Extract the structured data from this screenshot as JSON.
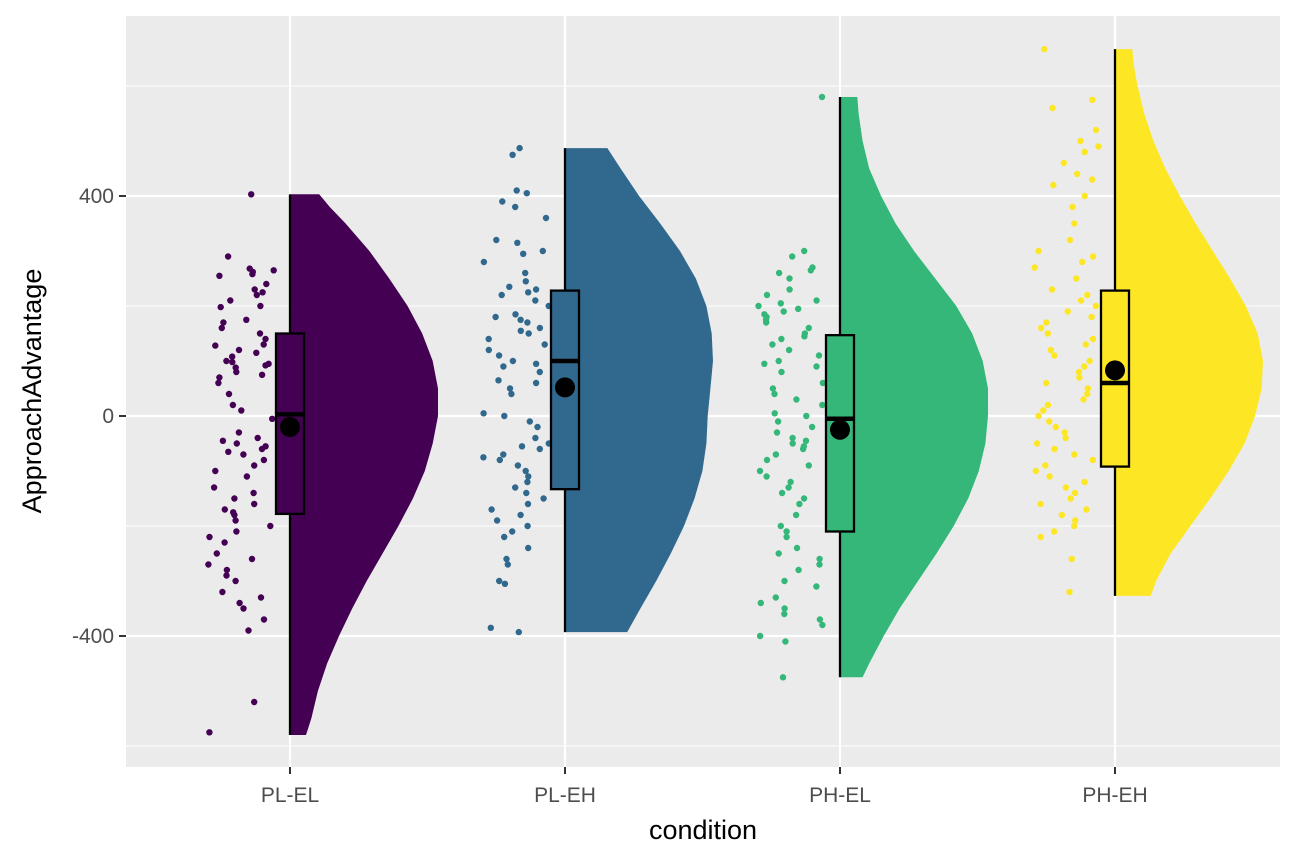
{
  "chart_data": {
    "type": "raincloud",
    "xlabel": "condition",
    "ylabel": "ApproachAdvantage",
    "ylim": [
      -640,
      670
    ],
    "yticks": [
      -400,
      0,
      400
    ],
    "ytick_labels": [
      "-400",
      "0",
      "400"
    ],
    "grid": true,
    "legend": "none",
    "categories": [
      "PL-EL",
      "PL-EH",
      "PH-EL",
      "PH-EH"
    ],
    "series": [
      {
        "name": "PL-EL",
        "color": "#440154",
        "min": -580,
        "q1": -178,
        "median": 3,
        "q3": 150,
        "max": 403,
        "mean": -20,
        "density": [
          [
            -580,
            0.0
          ],
          [
            -550,
            0.04
          ],
          [
            -500,
            0.09
          ],
          [
            -450,
            0.16
          ],
          [
            -400,
            0.25
          ],
          [
            -350,
            0.35
          ],
          [
            -300,
            0.46
          ],
          [
            -250,
            0.58
          ],
          [
            -200,
            0.7
          ],
          [
            -150,
            0.81
          ],
          [
            -100,
            0.9
          ],
          [
            -50,
            0.96
          ],
          [
            0,
            1.0
          ],
          [
            50,
            1.0
          ],
          [
            100,
            0.96
          ],
          [
            150,
            0.88
          ],
          [
            200,
            0.77
          ],
          [
            250,
            0.63
          ],
          [
            300,
            0.48
          ],
          [
            350,
            0.3
          ],
          [
            380,
            0.18
          ],
          [
            403,
            0.1
          ]
        ],
        "points": [
          403,
          290,
          268,
          265,
          262,
          258,
          255,
          240,
          230,
          225,
          220,
          210,
          200,
          198,
          175,
          170,
          160,
          150,
          140,
          130,
          128,
          120,
          115,
          108,
          100,
          98,
          95,
          92,
          88,
          80,
          75,
          70,
          60,
          40,
          20,
          10,
          -5,
          -30,
          -40,
          -45,
          -50,
          -55,
          -60,
          -65,
          -70,
          -80,
          -90,
          -100,
          -110,
          -130,
          -140,
          -150,
          -160,
          -170,
          -175,
          -180,
          -190,
          -200,
          -210,
          -220,
          -230,
          -250,
          -260,
          -270,
          -280,
          -290,
          -300,
          -320,
          -330,
          -340,
          -350,
          -370,
          -390,
          -520,
          -575
        ]
      },
      {
        "name": "PL-EH",
        "color": "#31688e",
        "min": -393,
        "q1": -133,
        "median": 100,
        "q3": 228,
        "max": 487,
        "mean": 52,
        "density": [
          [
            -393,
            0.35
          ],
          [
            -350,
            0.45
          ],
          [
            -300,
            0.57
          ],
          [
            -250,
            0.68
          ],
          [
            -200,
            0.78
          ],
          [
            -150,
            0.86
          ],
          [
            -100,
            0.92
          ],
          [
            -50,
            0.95
          ],
          [
            0,
            0.96
          ],
          [
            50,
            0.98
          ],
          [
            100,
            1.0
          ],
          [
            150,
            0.99
          ],
          [
            200,
            0.95
          ],
          [
            250,
            0.87
          ],
          [
            300,
            0.75
          ],
          [
            350,
            0.6
          ],
          [
            400,
            0.44
          ],
          [
            450,
            0.3
          ],
          [
            487,
            0.2
          ]
        ],
        "points": [
          487,
          475,
          410,
          405,
          390,
          380,
          360,
          320,
          315,
          300,
          295,
          280,
          260,
          245,
          235,
          230,
          225,
          220,
          210,
          200,
          185,
          180,
          175,
          170,
          160,
          155,
          150,
          140,
          130,
          120,
          110,
          100,
          95,
          90,
          80,
          65,
          60,
          50,
          40,
          5,
          0,
          -10,
          -20,
          -40,
          -50,
          -55,
          -60,
          -70,
          -75,
          -80,
          -90,
          -100,
          -110,
          -120,
          -130,
          -140,
          -150,
          -160,
          -170,
          -180,
          -190,
          -200,
          -210,
          -220,
          -240,
          -260,
          -270,
          -300,
          -305,
          -385,
          -393
        ]
      },
      {
        "name": "PH-EL",
        "color": "#35b779",
        "min": -475,
        "q1": -210,
        "median": -5,
        "q3": 147,
        "max": 580,
        "mean": -25,
        "density": [
          [
            -475,
            0.05
          ],
          [
            -450,
            0.1
          ],
          [
            -400,
            0.21
          ],
          [
            -350,
            0.33
          ],
          [
            -300,
            0.47
          ],
          [
            -250,
            0.61
          ],
          [
            -200,
            0.74
          ],
          [
            -150,
            0.85
          ],
          [
            -100,
            0.93
          ],
          [
            -50,
            0.98
          ],
          [
            0,
            1.0
          ],
          [
            50,
            1.0
          ],
          [
            100,
            0.96
          ],
          [
            150,
            0.88
          ],
          [
            200,
            0.76
          ],
          [
            250,
            0.6
          ],
          [
            300,
            0.44
          ],
          [
            350,
            0.3
          ],
          [
            400,
            0.19
          ],
          [
            450,
            0.1
          ],
          [
            500,
            0.05
          ],
          [
            550,
            0.02
          ],
          [
            580,
            0.01
          ]
        ],
        "points": [
          580,
          300,
          290,
          270,
          265,
          260,
          250,
          230,
          220,
          210,
          205,
          200,
          195,
          190,
          185,
          180,
          175,
          170,
          160,
          150,
          145,
          140,
          130,
          120,
          110,
          100,
          95,
          90,
          80,
          60,
          50,
          40,
          30,
          20,
          5,
          0,
          -10,
          -20,
          -30,
          -40,
          -45,
          -50,
          -55,
          -60,
          -70,
          -80,
          -90,
          -100,
          -110,
          -120,
          -130,
          -140,
          -150,
          -160,
          -180,
          -200,
          -210,
          -220,
          -240,
          -250,
          -260,
          -270,
          -280,
          -300,
          -310,
          -330,
          -340,
          -350,
          -360,
          -370,
          -380,
          -400,
          -410,
          -475
        ]
      },
      {
        "name": "PH-EH",
        "color": "#fde725",
        "min": -327,
        "q1": -92,
        "median": 60,
        "q3": 228,
        "max": 667,
        "mean": 83,
        "density": [
          [
            -327,
            0.15
          ],
          [
            -300,
            0.19
          ],
          [
            -250,
            0.3
          ],
          [
            -200,
            0.45
          ],
          [
            -150,
            0.6
          ],
          [
            -100,
            0.74
          ],
          [
            -50,
            0.86
          ],
          [
            0,
            0.94
          ],
          [
            50,
            0.99
          ],
          [
            100,
            1.0
          ],
          [
            150,
            0.96
          ],
          [
            200,
            0.87
          ],
          [
            250,
            0.75
          ],
          [
            300,
            0.62
          ],
          [
            350,
            0.49
          ],
          [
            400,
            0.37
          ],
          [
            450,
            0.26
          ],
          [
            500,
            0.17
          ],
          [
            550,
            0.1
          ],
          [
            600,
            0.05
          ],
          [
            640,
            0.02
          ],
          [
            667,
            0.01
          ]
        ],
        "points": [
          667,
          575,
          560,
          520,
          500,
          490,
          480,
          460,
          440,
          430,
          420,
          400,
          380,
          350,
          320,
          300,
          290,
          280,
          270,
          250,
          230,
          220,
          210,
          200,
          190,
          180,
          170,
          160,
          150,
          140,
          130,
          120,
          110,
          100,
          90,
          80,
          70,
          60,
          50,
          40,
          30,
          20,
          10,
          0,
          -10,
          -20,
          -30,
          -40,
          -50,
          -60,
          -70,
          -80,
          -90,
          -100,
          -110,
          -120,
          -130,
          -140,
          -150,
          -160,
          -170,
          -180,
          -190,
          -200,
          -210,
          -220,
          -260,
          -320
        ]
      }
    ]
  }
}
